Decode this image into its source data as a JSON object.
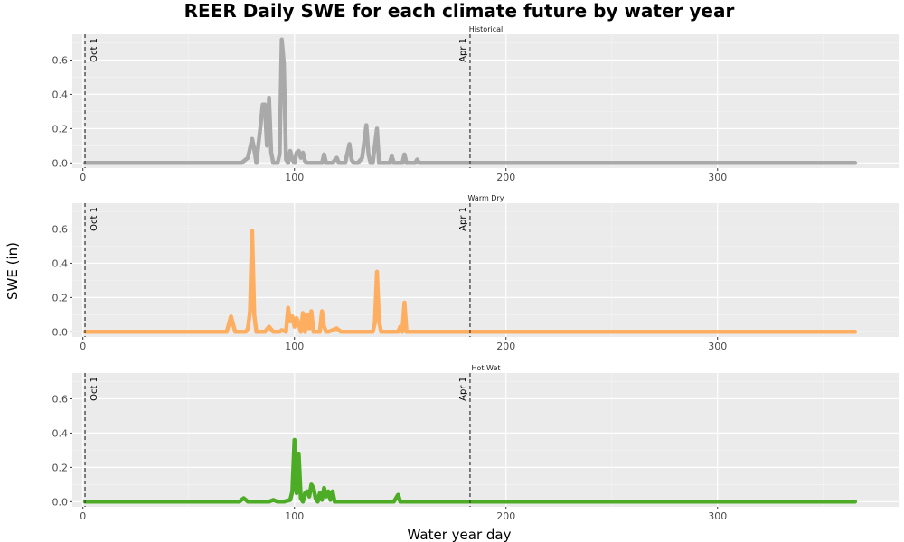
{
  "chart_data": {
    "type": "line",
    "title": "REER Daily SWE for each climate future by water year",
    "xlabel": "Water year day",
    "ylabel": "SWE (in)",
    "xlim": [
      -5,
      386
    ],
    "ylim": [
      -0.03,
      0.75
    ],
    "x_ticks": [
      0,
      100,
      200,
      300
    ],
    "y_ticks": [
      0,
      0.2,
      0.4,
      0.6
    ],
    "y_tick_labels": [
      "0.0",
      "0.2",
      "0.4",
      "0.6"
    ],
    "grid": true,
    "reference_lines": [
      {
        "x": 1,
        "label": "Oct 1"
      },
      {
        "x": 183,
        "label": "Apr 1"
      }
    ],
    "panels": [
      {
        "name": "Historical",
        "color": "#a9a9a9",
        "x": [
          1,
          75,
          78,
          80,
          81,
          82,
          84,
          85,
          86,
          87,
          88,
          89,
          90,
          91,
          92,
          93,
          94,
          95,
          96,
          97,
          98,
          99,
          100,
          101,
          102,
          103,
          104,
          105,
          106,
          107,
          108,
          109,
          113,
          114,
          115,
          118,
          120,
          121,
          124,
          126,
          127,
          128,
          130,
          132,
          134,
          135,
          136,
          137,
          139,
          140,
          141,
          145,
          146,
          147,
          151,
          152,
          153,
          157,
          158,
          159,
          365
        ],
        "y": [
          0,
          0,
          0.03,
          0.14,
          0.08,
          0,
          0.22,
          0.34,
          0.34,
          0.1,
          0.38,
          0.06,
          0,
          0,
          0,
          0.05,
          0.72,
          0.58,
          0.02,
          0,
          0.07,
          0.02,
          0,
          0.06,
          0.07,
          0.03,
          0.06,
          0.01,
          0,
          0,
          0,
          0,
          0,
          0.05,
          0,
          0,
          0.03,
          0,
          0,
          0.11,
          0.02,
          0,
          0,
          0.03,
          0.22,
          0.05,
          0,
          0,
          0.2,
          0,
          0,
          0,
          0.04,
          0,
          0,
          0.05,
          0,
          0,
          0.02,
          0,
          0
        ]
      },
      {
        "name": "Warm Dry",
        "color": "#fdae61",
        "x": [
          1,
          68,
          70,
          72,
          77,
          78,
          79,
          80,
          81,
          82,
          86,
          88,
          90,
          93,
          94,
          96,
          97,
          98,
          99,
          100,
          101,
          102,
          103,
          104,
          105,
          106,
          107,
          108,
          109,
          110,
          111,
          112,
          113,
          114,
          115,
          116,
          118,
          120,
          122,
          137,
          138,
          139,
          140,
          141,
          149,
          150,
          151,
          152,
          153,
          365
        ],
        "y": [
          0,
          0,
          0.09,
          0,
          0,
          0.02,
          0.12,
          0.59,
          0.1,
          0,
          0,
          0.03,
          0,
          0,
          0.01,
          0,
          0.14,
          0.06,
          0.09,
          0.03,
          0.08,
          0.05,
          0,
          0.11,
          0,
          0.1,
          0.02,
          0.12,
          0,
          0,
          0,
          0,
          0.12,
          0.03,
          0,
          0,
          0.01,
          0.02,
          0,
          0,
          0.05,
          0.35,
          0.06,
          0,
          0,
          0.03,
          0,
          0.17,
          0,
          0
        ]
      },
      {
        "name": "Hot Wet",
        "color": "#4dac26",
        "x": [
          1,
          74,
          76,
          78,
          88,
          90,
          92,
          95,
          98,
          99,
          100,
          101,
          102,
          103,
          104,
          105,
          106,
          107,
          108,
          109,
          110,
          111,
          112,
          113,
          114,
          115,
          116,
          117,
          118,
          119,
          120,
          147,
          148,
          149,
          150,
          365
        ],
        "y": [
          0,
          0,
          0.02,
          0,
          0,
          0.01,
          0,
          0,
          0.01,
          0.06,
          0.36,
          0.05,
          0.28,
          0.02,
          0,
          0.05,
          0.06,
          0.03,
          0.1,
          0.08,
          0.02,
          0,
          0.05,
          0.01,
          0.08,
          0.03,
          0.06,
          0.01,
          0.06,
          0,
          0,
          0,
          0.02,
          0.04,
          0,
          0
        ]
      }
    ]
  }
}
